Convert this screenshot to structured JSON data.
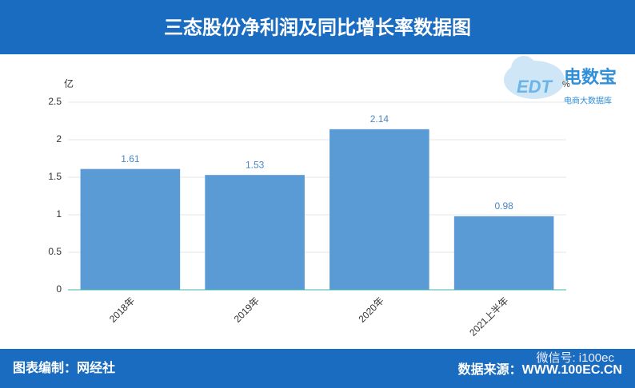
{
  "chart_data": {
    "type": "bar",
    "title": "三态股份净利润及同比增长率数据图",
    "ylabel": "亿",
    "y2label": "%",
    "categories": [
      "2018年",
      "2019年",
      "2020年",
      "2021上半年"
    ],
    "values": [
      1.61,
      1.53,
      2.14,
      0.98
    ],
    "color": "#5b9bd5",
    "label_color": "#4a86c5",
    "ylim": [
      0,
      2.5
    ],
    "yticks": [
      0,
      0.5,
      1,
      1.5,
      2,
      2.5
    ],
    "grid": true,
    "annotations": {
      "logo_title": "电数宝",
      "logo_sub": "电商大数据库",
      "logo_mark": "EDT",
      "footer_left": "图表编制：网经社",
      "footer_right": "数据来源：WWW.100EC.CN",
      "watermark": "微信号: i100ec"
    }
  }
}
